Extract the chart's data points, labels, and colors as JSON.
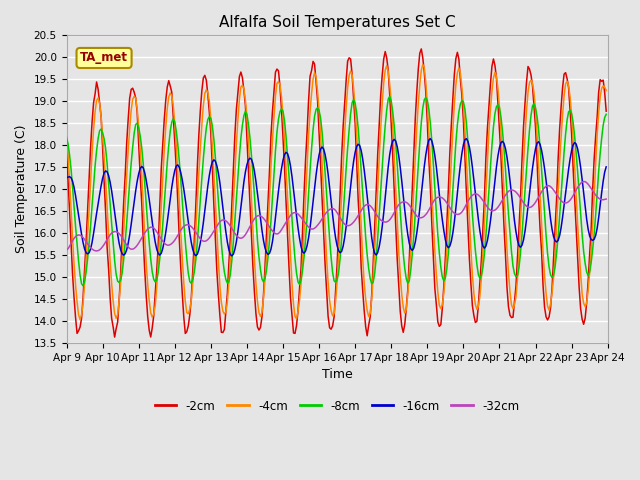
{
  "title": "Alfalfa Soil Temperatures Set C",
  "xlabel": "Time",
  "ylabel": "Soil Temperature (C)",
  "ylim": [
    13.5,
    20.5
  ],
  "xtick_labels": [
    "Apr 9",
    "Apr 10",
    "Apr 11",
    "Apr 12",
    "Apr 13",
    "Apr 14",
    "Apr 15",
    "Apr 16",
    "Apr 17",
    "Apr 18",
    "Apr 19",
    "Apr 20",
    "Apr 21",
    "Apr 22",
    "Apr 23",
    "Apr 24"
  ],
  "series": [
    {
      "label": "-2cm",
      "color": "#dd0000"
    },
    {
      "label": "-4cm",
      "color": "#ff8800"
    },
    {
      "label": "-8cm",
      "color": "#00cc00"
    },
    {
      "label": "-16cm",
      "color": "#0000cc"
    },
    {
      "label": "-32cm",
      "color": "#bb44bb"
    }
  ],
  "ta_met_box_color": "#ffff99",
  "ta_met_text_color": "#990000",
  "ta_met_border_color": "#aa8800",
  "plot_bg_color": "#e5e5e5",
  "grid_color": "#ffffff",
  "title_fontsize": 11,
  "axis_label_fontsize": 9,
  "tick_fontsize": 7.5
}
